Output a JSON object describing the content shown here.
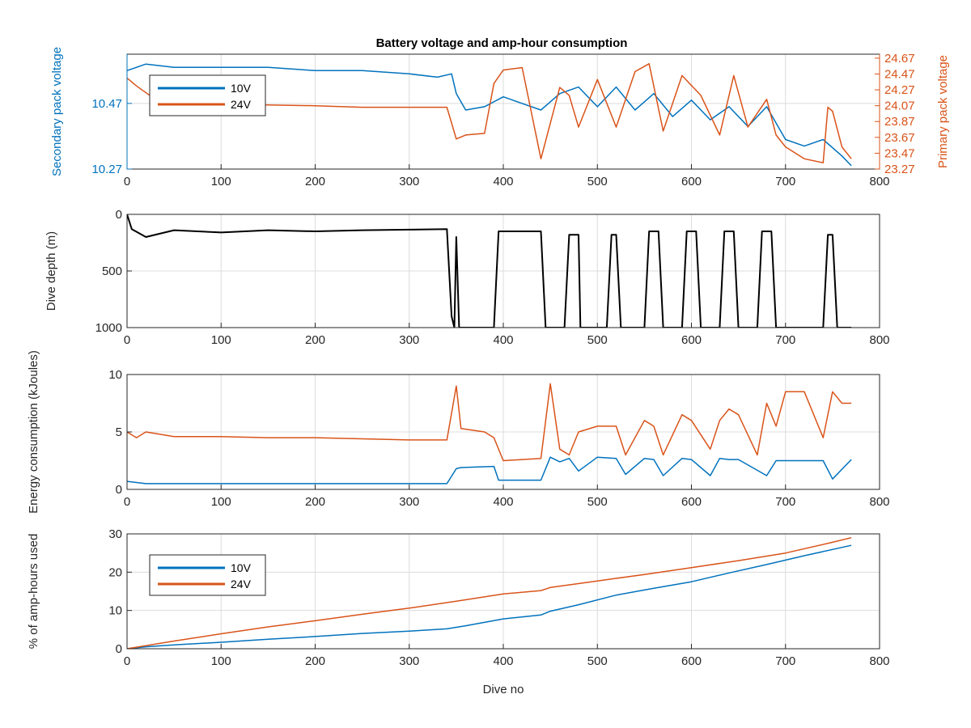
{
  "figure_title": "Battery voltage and amp-hour consumption",
  "colors": {
    "blue": "#0072BD",
    "orange": "#D95319",
    "black": "#000000",
    "grid": "#dcdcdc",
    "axis": "#262626"
  },
  "chart_data": [
    {
      "id": "voltage",
      "type": "line",
      "title": "Battery voltage and amp-hour consumption",
      "xlabel": "",
      "xlim": [
        0,
        800
      ],
      "xticks": [
        "0",
        "100",
        "200",
        "300",
        "400",
        "500",
        "600",
        "700",
        "800"
      ],
      "ylabel_left": "Secondary pack voltage",
      "ylim_left": [
        10.27,
        10.62
      ],
      "yticks_left": [
        "10.27",
        "10.47"
      ],
      "ylabel_right": "Primary pack voltage",
      "ylim_right": [
        23.27,
        24.72
      ],
      "yticks_right": [
        "23.27",
        "23.47",
        "23.67",
        "23.87",
        "24.07",
        "24.27",
        "24.47",
        "24.67"
      ],
      "grid": true,
      "legend": {
        "position": "top-left",
        "entries": [
          "10V",
          "24V"
        ]
      },
      "series": [
        {
          "name": "10V",
          "axis": "left",
          "color": "blue",
          "x": [
            0,
            20,
            50,
            100,
            150,
            200,
            250,
            300,
            330,
            345,
            350,
            360,
            380,
            400,
            420,
            440,
            460,
            480,
            500,
            520,
            540,
            560,
            580,
            600,
            620,
            640,
            660,
            680,
            700,
            720,
            740,
            760,
            770
          ],
          "y": [
            10.57,
            10.59,
            10.58,
            10.58,
            10.58,
            10.57,
            10.57,
            10.56,
            10.55,
            10.56,
            10.5,
            10.45,
            10.46,
            10.49,
            10.47,
            10.45,
            10.5,
            10.52,
            10.46,
            10.52,
            10.45,
            10.5,
            10.43,
            10.48,
            10.42,
            10.46,
            10.4,
            10.46,
            10.36,
            10.34,
            10.36,
            10.31,
            10.28
          ]
        },
        {
          "name": "24V",
          "axis": "right",
          "color": "orange",
          "x": [
            0,
            10,
            30,
            60,
            100,
            150,
            200,
            250,
            300,
            340,
            350,
            360,
            380,
            390,
            400,
            420,
            440,
            460,
            470,
            480,
            500,
            520,
            540,
            555,
            570,
            590,
            610,
            630,
            645,
            660,
            680,
            690,
            700,
            720,
            740,
            745,
            750,
            760,
            770
          ],
          "y": [
            24.42,
            24.32,
            24.15,
            24.12,
            24.1,
            24.08,
            24.07,
            24.05,
            24.05,
            24.05,
            23.65,
            23.7,
            23.72,
            24.35,
            24.52,
            24.55,
            23.4,
            24.3,
            24.2,
            23.8,
            24.4,
            23.8,
            24.5,
            24.6,
            23.75,
            24.45,
            24.2,
            23.7,
            24.45,
            23.8,
            24.15,
            23.7,
            23.55,
            23.4,
            23.35,
            24.05,
            24.0,
            23.55,
            23.4
          ]
        }
      ]
    },
    {
      "id": "depth",
      "type": "line",
      "xlim": [
        0,
        800
      ],
      "xticks": [
        "0",
        "100",
        "200",
        "300",
        "400",
        "500",
        "600",
        "700",
        "800"
      ],
      "ylabel": "Dive depth (m)",
      "ylim": [
        0,
        1000
      ],
      "reverse_y": true,
      "yticks": [
        "0",
        "500",
        "1000"
      ],
      "grid": true,
      "series": [
        {
          "name": "",
          "color": "black",
          "x": [
            0,
            5,
            20,
            50,
            100,
            150,
            200,
            250,
            300,
            340,
            345,
            348,
            350,
            353,
            355,
            360,
            390,
            395,
            400,
            440,
            445,
            465,
            470,
            480,
            482,
            490,
            510,
            515,
            520,
            525,
            530,
            550,
            555,
            565,
            570,
            590,
            595,
            605,
            610,
            630,
            635,
            645,
            650,
            670,
            675,
            685,
            690,
            740,
            745,
            750,
            755,
            770
          ],
          "y": [
            0,
            130,
            200,
            140,
            160,
            140,
            150,
            140,
            135,
            130,
            900,
            1000,
            200,
            1000,
            1000,
            1000,
            1000,
            150,
            150,
            150,
            1000,
            1000,
            180,
            180,
            1000,
            1000,
            1000,
            180,
            180,
            1000,
            1000,
            1000,
            150,
            150,
            1000,
            1000,
            150,
            150,
            1000,
            1000,
            150,
            150,
            1000,
            1000,
            150,
            150,
            1000,
            1000,
            180,
            180,
            1000,
            1000
          ]
        }
      ]
    },
    {
      "id": "energy",
      "type": "line",
      "xlim": [
        0,
        800
      ],
      "xticks": [
        "0",
        "100",
        "200",
        "300",
        "400",
        "500",
        "600",
        "700",
        "800"
      ],
      "ylabel": "Energy consumption (kJoules)",
      "ylim": [
        0,
        10
      ],
      "yticks": [
        "0",
        "5",
        "10"
      ],
      "grid": true,
      "series": [
        {
          "name": "10V",
          "color": "blue",
          "x": [
            0,
            20,
            100,
            200,
            300,
            340,
            350,
            355,
            390,
            395,
            440,
            450,
            460,
            470,
            480,
            500,
            520,
            530,
            550,
            560,
            570,
            590,
            600,
            620,
            630,
            640,
            650,
            680,
            690,
            700,
            720,
            740,
            750,
            770
          ],
          "y": [
            0.7,
            0.5,
            0.5,
            0.5,
            0.5,
            0.5,
            1.8,
            1.9,
            2.0,
            0.8,
            0.8,
            2.8,
            2.4,
            2.7,
            1.6,
            2.8,
            2.7,
            1.3,
            2.7,
            2.6,
            1.2,
            2.7,
            2.6,
            1.2,
            2.7,
            2.6,
            2.6,
            1.2,
            2.5,
            2.5,
            2.5,
            2.5,
            0.9,
            2.6
          ]
        },
        {
          "name": "24V",
          "color": "orange",
          "x": [
            0,
            10,
            20,
            50,
            100,
            150,
            200,
            250,
            300,
            340,
            350,
            355,
            380,
            390,
            400,
            440,
            450,
            460,
            470,
            480,
            500,
            520,
            530,
            550,
            560,
            570,
            590,
            600,
            620,
            630,
            640,
            650,
            670,
            680,
            690,
            700,
            720,
            740,
            750,
            760,
            770
          ],
          "y": [
            5.0,
            4.5,
            5.0,
            4.6,
            4.6,
            4.5,
            4.5,
            4.4,
            4.3,
            4.3,
            9.0,
            5.3,
            5.0,
            4.5,
            2.5,
            2.7,
            9.2,
            3.5,
            3.0,
            5.0,
            5.5,
            5.5,
            3.0,
            6.0,
            5.5,
            3.0,
            6.5,
            6.0,
            3.5,
            6.0,
            7.0,
            6.5,
            3.0,
            7.5,
            5.5,
            8.5,
            8.5,
            4.5,
            8.5,
            7.5,
            7.5
          ]
        }
      ]
    },
    {
      "id": "amphours",
      "type": "line",
      "xlim": [
        0,
        800
      ],
      "xticks": [
        "0",
        "100",
        "200",
        "300",
        "400",
        "500",
        "600",
        "700",
        "800"
      ],
      "xlabel": "Dive no",
      "ylabel": "% of amp-hours used",
      "ylim": [
        0,
        30
      ],
      "yticks": [
        "0",
        "10",
        "20",
        "30"
      ],
      "grid": true,
      "legend": {
        "position": "top-left",
        "entries": [
          "10V",
          "24V"
        ]
      },
      "series": [
        {
          "name": "10V",
          "color": "blue",
          "x": [
            0,
            20,
            50,
            100,
            150,
            200,
            250,
            300,
            340,
            360,
            400,
            440,
            450,
            480,
            520,
            560,
            600,
            640,
            680,
            720,
            770
          ],
          "y": [
            0,
            0.5,
            1.0,
            1.7,
            2.5,
            3.2,
            4.0,
            4.6,
            5.2,
            6.0,
            7.8,
            8.8,
            9.8,
            11.5,
            14.0,
            15.8,
            17.5,
            19.8,
            22.0,
            24.3,
            27.0
          ]
        },
        {
          "name": "24V",
          "color": "orange",
          "x": [
            0,
            50,
            100,
            150,
            200,
            250,
            300,
            350,
            400,
            440,
            450,
            500,
            550,
            600,
            650,
            700,
            750,
            770
          ],
          "y": [
            0,
            2.0,
            3.9,
            5.7,
            7.3,
            9.0,
            10.6,
            12.4,
            14.3,
            15.2,
            16.0,
            17.7,
            19.4,
            21.2,
            23.0,
            25.0,
            27.8,
            29.0
          ]
        }
      ]
    }
  ]
}
